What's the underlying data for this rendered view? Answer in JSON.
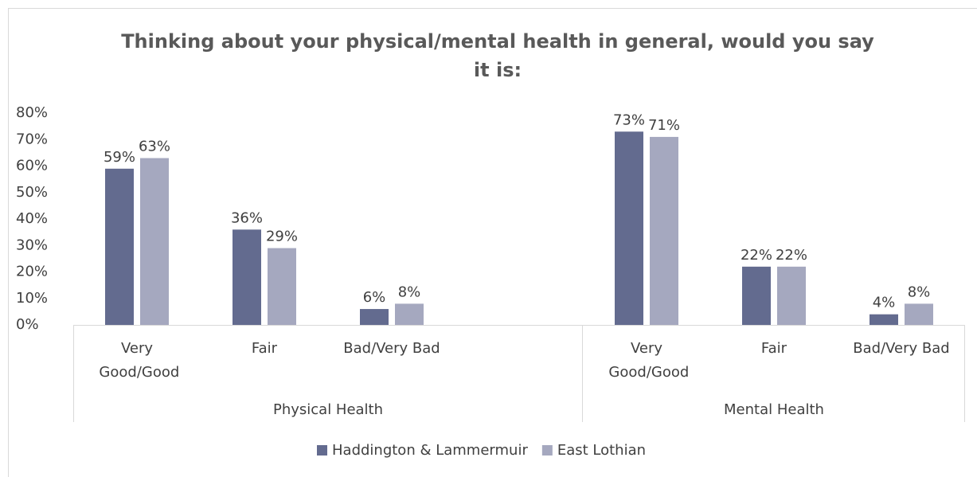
{
  "chart_data": {
    "type": "bar",
    "title": "Thinking about your physical/mental health in general, would you say it is:",
    "groups": [
      {
        "label": "Physical Health",
        "categories": [
          "Very Good/Good",
          "Fair",
          "Bad/Very Bad",
          null
        ]
      },
      {
        "label": "Mental Health",
        "categories": [
          "Very Good/Good",
          "Fair",
          "Bad/Very Bad"
        ]
      }
    ],
    "series": [
      {
        "name": "Haddington & Lammermuir",
        "color": "#636b8f",
        "values": [
          59,
          36,
          6,
          null,
          73,
          22,
          4
        ],
        "value_labels": [
          "59%",
          "36%",
          "6%",
          null,
          "73%",
          "22%",
          "4%"
        ]
      },
      {
        "name": "East Lothian",
        "color": "#a5a8bf",
        "values": [
          63,
          29,
          8,
          null,
          71,
          22,
          8
        ],
        "value_labels": [
          "63%",
          "29%",
          "8%",
          null,
          "71%",
          "22%",
          "8%"
        ]
      }
    ],
    "ylim": [
      0,
      80
    ],
    "yticks": [
      {
        "value": 0,
        "label": "0%"
      },
      {
        "value": 10,
        "label": "10%"
      },
      {
        "value": 20,
        "label": "20%"
      },
      {
        "value": 30,
        "label": "30%"
      },
      {
        "value": 40,
        "label": "40%"
      },
      {
        "value": 50,
        "label": "50%"
      },
      {
        "value": 60,
        "label": "60%"
      },
      {
        "value": 70,
        "label": "70%"
      },
      {
        "value": 80,
        "label": "80%"
      }
    ],
    "legend": "bottom"
  }
}
